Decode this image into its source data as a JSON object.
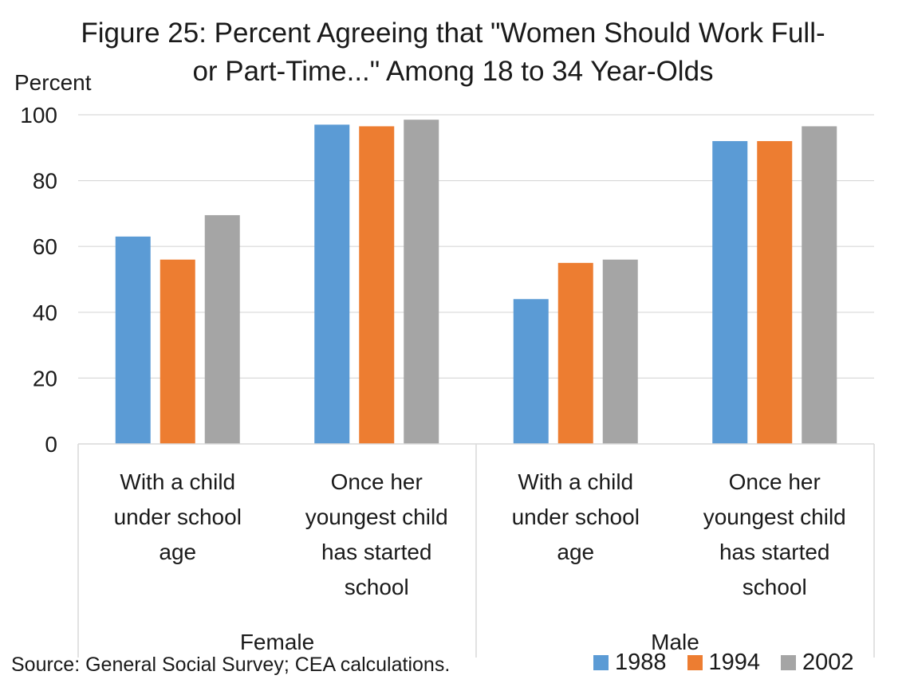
{
  "chart_data": {
    "type": "bar",
    "title_line1": "Figure 25: Percent Agreeing that \"Women Should Work Full-",
    "title_line2": "or Part-Time...\" Among 18 to 34 Year-Olds",
    "ylabel": "Percent",
    "ylim": [
      0,
      100
    ],
    "yticks": [
      0,
      20,
      40,
      60,
      80,
      100
    ],
    "grid": true,
    "groups": [
      {
        "label": "Female",
        "categories": [
          [
            "With a child",
            "under school",
            "age"
          ],
          [
            "Once her",
            "youngest child",
            "has started",
            "school"
          ]
        ]
      },
      {
        "label": "Male",
        "categories": [
          [
            "With a child",
            "under school",
            "age"
          ],
          [
            "Once her",
            "youngest child",
            "has started",
            "school"
          ]
        ]
      }
    ],
    "series": [
      {
        "name": "1988",
        "color": "#5B9BD5",
        "values": [
          63,
          97,
          44,
          92
        ]
      },
      {
        "name": "1994",
        "color": "#ED7D31",
        "values": [
          56,
          96.5,
          55,
          92
        ]
      },
      {
        "name": "2002",
        "color": "#A5A5A5",
        "values": [
          69.5,
          98.5,
          56,
          96.5
        ]
      }
    ],
    "legend_position": "bottom-right"
  },
  "source": "Source: General Social Survey; CEA calculations."
}
